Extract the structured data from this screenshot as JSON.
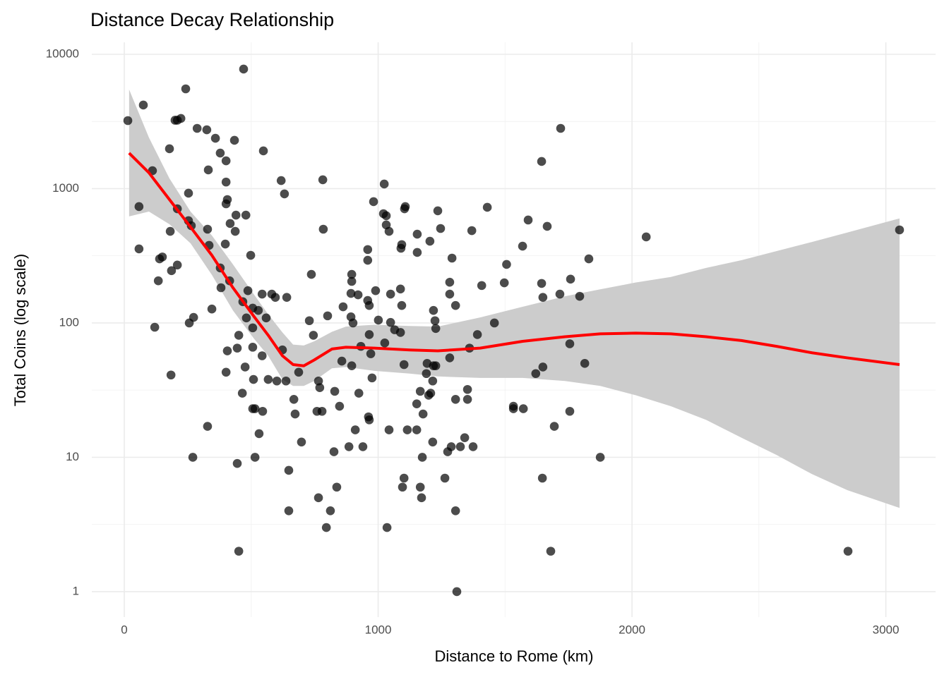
{
  "chart_data": {
    "type": "scatter",
    "title": "Distance Decay Relationship",
    "x_label": "Distance to Rome (km)",
    "y_label": "Total Coins (log scale)",
    "xlim": [
      -128,
      3196
    ],
    "xticks": [
      0,
      1000,
      2000,
      3000
    ],
    "ylim": [
      0.647,
      12280
    ],
    "yticks": [
      1,
      10,
      100,
      1000,
      10000
    ],
    "yscale": "log",
    "grid": true,
    "points": {
      "color": "#000000",
      "opacity": 0.7,
      "x": [
        14,
        75,
        58,
        58,
        111,
        120,
        139,
        150,
        134,
        178,
        181,
        186,
        184,
        200,
        209,
        223,
        209,
        209,
        242,
        253,
        253,
        264,
        256,
        273,
        270,
        287,
        325,
        331,
        328,
        334,
        345,
        328,
        359,
        378,
        401,
        401,
        401,
        406,
        417,
        434,
        440,
        437,
        398,
        378,
        381,
        415,
        406,
        401,
        445,
        451,
        470,
        479,
        467,
        487,
        481,
        476,
        465,
        445,
        451,
        498,
        506,
        506,
        506,
        509,
        506,
        515,
        515,
        528,
        531,
        543,
        545,
        548,
        543,
        559,
        567,
        581,
        595,
        601,
        618,
        623,
        631,
        637,
        640,
        648,
        648,
        668,
        673,
        687,
        698,
        729,
        737,
        745,
        759,
        765,
        770,
        765,
        779,
        782,
        784,
        796,
        801,
        812,
        826,
        829,
        837,
        848,
        857,
        862,
        885,
        896,
        893,
        896,
        896,
        893,
        901,
        910,
        921,
        924,
        932,
        940,
        959,
        959,
        959,
        965,
        962,
        965,
        965,
        971,
        976,
        982,
        990,
        1001,
        1024,
        1021,
        1032,
        1032,
        1043,
        1026,
        1035,
        1043,
        1049,
        1049,
        1065,
        1088,
        1090,
        1093,
        1088,
        1093,
        1102,
        1104,
        1107,
        1096,
        1102,
        1115,
        1152,
        1152,
        1154,
        1154,
        1166,
        1166,
        1177,
        1171,
        1174,
        1190,
        1193,
        1199,
        1204,
        1207,
        1215,
        1218,
        1218,
        1215,
        1227,
        1224,
        1227,
        1235,
        1246,
        1263,
        1274,
        1282,
        1291,
        1282,
        1282,
        1288,
        1305,
        1305,
        1305,
        1310,
        1324,
        1341,
        1352,
        1352,
        1369,
        1374,
        1360,
        1391,
        1408,
        1430,
        1458,
        1497,
        1506,
        1533,
        1533,
        1572,
        1569,
        1591,
        1621,
        1644,
        1644,
        1649,
        1649,
        1647,
        1666,
        1680,
        1694,
        1719,
        1716,
        1755,
        1755,
        1758,
        1794,
        1814,
        1830,
        1875,
        2056,
        2851,
        3054
      ],
      "y": [
        3210,
        4190,
        735,
        356,
        1360,
        93,
        300,
        310,
        206,
        1980,
        481,
        245,
        41,
        3230,
        3230,
        3330,
        708,
        270,
        5530,
        925,
        577,
        530,
        100,
        110,
        10,
        2810,
        2740,
        1378,
        499,
        378,
        127,
        17,
        2370,
        1840,
        1610,
        1120,
        771,
        829,
        550,
        2290,
        635,
        481,
        387,
        257,
        183,
        206,
        62,
        43,
        65,
        81,
        7760,
        635,
        144,
        174,
        109,
        47,
        30,
        9,
        2,
        319,
        92,
        129,
        66,
        38,
        23,
        23,
        10,
        124,
        15,
        57,
        22,
        1910,
        164,
        109,
        38,
        164,
        155,
        37,
        1148,
        63,
        914,
        37,
        155,
        8,
        4,
        27,
        21,
        43,
        13,
        104,
        230,
        81,
        22,
        37,
        33,
        5,
        22,
        1164,
        499,
        3,
        113,
        4,
        11,
        31,
        6,
        24,
        52,
        132,
        12,
        48,
        166,
        204,
        230,
        111,
        100,
        16,
        162,
        30,
        67,
        12,
        147,
        352,
        293,
        19,
        20,
        135,
        82,
        59,
        39,
        800,
        174,
        105,
        1082,
        651,
        628,
        537,
        481,
        71,
        3,
        16,
        164,
        101,
        89,
        85,
        360,
        383,
        179,
        135,
        49,
        708,
        735,
        6,
        7,
        16,
        25,
        16,
        458,
        335,
        31,
        6,
        21,
        5,
        10,
        42,
        50,
        29,
        406,
        30,
        37,
        124,
        48,
        13,
        48,
        104,
        91,
        684,
        505,
        7,
        11,
        55,
        304,
        201,
        164,
        12,
        27,
        135,
        4,
        1,
        12,
        14,
        27,
        32,
        487,
        12,
        65,
        82,
        190,
        726,
        100,
        199,
        273,
        24,
        23,
        23,
        373,
        584,
        42,
        1593,
        197,
        155,
        47,
        7,
        524,
        2,
        17,
        2810,
        164,
        70,
        22,
        212,
        158,
        50,
        300,
        10,
        437,
        2,
        493
      ]
    },
    "smooth": {
      "color": "#ff0000",
      "x": [
        19,
        97,
        178,
        261,
        345,
        428,
        512,
        567,
        623,
        665,
        707,
        748,
        818,
        873,
        985,
        1124,
        1235,
        1402,
        1569,
        1736,
        1875,
        2014,
        2153,
        2292,
        2431,
        2570,
        2709,
        2848,
        3054
      ],
      "y": [
        1840,
        1313,
        829,
        518,
        319,
        183,
        111,
        81,
        57,
        49,
        48,
        53,
        64,
        66,
        65,
        63,
        62,
        65,
        73,
        79,
        83,
        84,
        83,
        79,
        74,
        67,
        60,
        55,
        49
      ]
    },
    "band": {
      "color": "#cccccc",
      "upper": [
        5470,
        2400,
        1190,
        675,
        448,
        273,
        162,
        116,
        85,
        69,
        68,
        73,
        86,
        94,
        97,
        95,
        94,
        110,
        132,
        158,
        178,
        200,
        220,
        257,
        293,
        343,
        401,
        471,
        600
      ],
      "lower": [
        621,
        675,
        543,
        392,
        228,
        124,
        76,
        57,
        38,
        34,
        34,
        37,
        46,
        47,
        44,
        42,
        40,
        39,
        39,
        37,
        34,
        29,
        24,
        19,
        14,
        10.4,
        7.5,
        5.7,
        4.2
      ]
    }
  }
}
